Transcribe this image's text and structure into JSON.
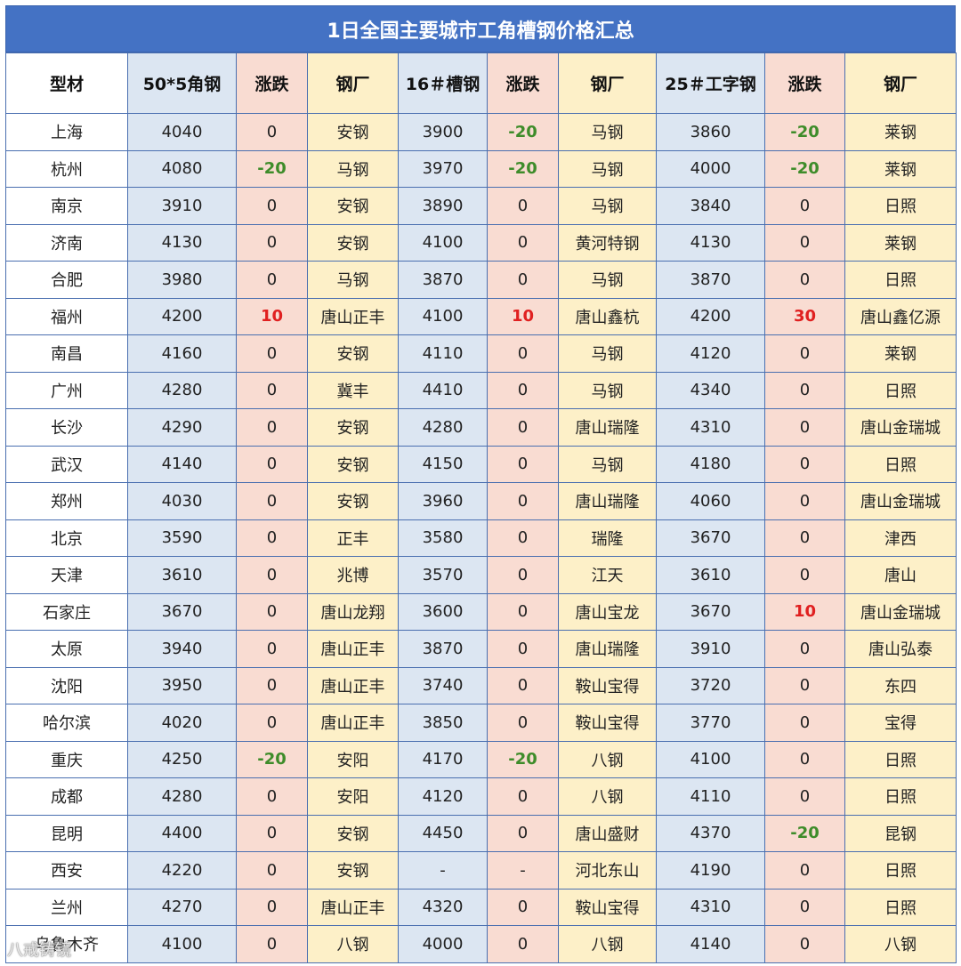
{
  "title": "1日全国主要城市工角槽钢价格汇总",
  "headers": [
    "型材",
    "50*5角钢",
    "涨跌",
    "钢厂",
    "16＃槽钢",
    "涨跌",
    "钢厂",
    "25＃工字钢",
    "涨跌",
    "钢厂"
  ],
  "rows": [
    [
      "上海",
      "4040",
      "0",
      "安钢",
      "3900",
      "-20",
      "马钢",
      "3860",
      "-20",
      "莱钢"
    ],
    [
      "杭州",
      "4080",
      "-20",
      "马钢",
      "3970",
      "-20",
      "马钢",
      "4000",
      "-20",
      "莱钢"
    ],
    [
      "南京",
      "3910",
      "0",
      "安钢",
      "3890",
      "0",
      "马钢",
      "3840",
      "0",
      "日照"
    ],
    [
      "济南",
      "4130",
      "0",
      "安钢",
      "4100",
      "0",
      "黄河特钢",
      "4130",
      "0",
      "莱钢"
    ],
    [
      "合肥",
      "3980",
      "0",
      "马钢",
      "3870",
      "0",
      "马钢",
      "3870",
      "0",
      "日照"
    ],
    [
      "福州",
      "4200",
      "10",
      "唐山正丰",
      "4100",
      "10",
      "唐山鑫杭",
      "4200",
      "30",
      "唐山鑫亿源"
    ],
    [
      "南昌",
      "4160",
      "0",
      "安钢",
      "4110",
      "0",
      "马钢",
      "4120",
      "0",
      "莱钢"
    ],
    [
      "广州",
      "4280",
      "0",
      "冀丰",
      "4410",
      "0",
      "马钢",
      "4340",
      "0",
      "日照"
    ],
    [
      "长沙",
      "4290",
      "0",
      "安钢",
      "4280",
      "0",
      "唐山瑞隆",
      "4310",
      "0",
      "唐山金瑞城"
    ],
    [
      "武汉",
      "4140",
      "0",
      "安钢",
      "4150",
      "0",
      "马钢",
      "4180",
      "0",
      "日照"
    ],
    [
      "郑州",
      "4030",
      "0",
      "安钢",
      "3960",
      "0",
      "唐山瑞隆",
      "4060",
      "0",
      "唐山金瑞城"
    ],
    [
      "北京",
      "3590",
      "0",
      "正丰",
      "3580",
      "0",
      "瑞隆",
      "3670",
      "0",
      "津西"
    ],
    [
      "天津",
      "3610",
      "0",
      "兆博",
      "3570",
      "0",
      "江天",
      "3610",
      "0",
      "唐山"
    ],
    [
      "石家庄",
      "3670",
      "0",
      "唐山龙翔",
      "3600",
      "0",
      "唐山宝龙",
      "3670",
      "10",
      "唐山金瑞城"
    ],
    [
      "太原",
      "3940",
      "0",
      "唐山正丰",
      "3870",
      "0",
      "唐山瑞隆",
      "3910",
      "0",
      "唐山弘泰"
    ],
    [
      "沈阳",
      "3950",
      "0",
      "唐山正丰",
      "3740",
      "0",
      "鞍山宝得",
      "3720",
      "0",
      "东四"
    ],
    [
      "哈尔滨",
      "4020",
      "0",
      "唐山正丰",
      "3850",
      "0",
      "鞍山宝得",
      "3770",
      "0",
      "宝得"
    ],
    [
      "重庆",
      "4250",
      "-20",
      "安阳",
      "4170",
      "-20",
      "八钢",
      "4100",
      "0",
      "日照"
    ],
    [
      "成都",
      "4280",
      "0",
      "安阳",
      "4120",
      "0",
      "八钢",
      "4110",
      "0",
      "日照"
    ],
    [
      "昆明",
      "4400",
      "0",
      "安钢",
      "4450",
      "0",
      "唐山盛财",
      "4370",
      "-20",
      "昆钢"
    ],
    [
      "西安",
      "4220",
      "0",
      "安钢",
      "-",
      "-",
      "河北东山",
      "4190",
      "0",
      "日照"
    ],
    [
      "兰州",
      "4270",
      "0",
      "唐山正丰",
      "4320",
      "0",
      "鞍山宝得",
      "4310",
      "0",
      "日照"
    ],
    [
      "乌鲁木齐",
      "4100",
      "0",
      "八钢",
      "4000",
      "0",
      "八钢",
      "4140",
      "0",
      "八钢"
    ]
  ],
  "watermark": "八戒铸镜",
  "colors": {
    "title_bg": "#4472c4",
    "price_bg": "#dce6f2",
    "change_bg": "#f9dcd2",
    "mill_bg": "#fdf0c8",
    "negative": "#3e8c2a",
    "positive": "#e02020"
  }
}
